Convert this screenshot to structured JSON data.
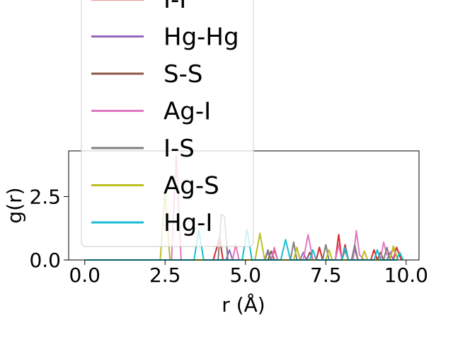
{
  "chart_data": {
    "type": "line",
    "title": "",
    "xlabel": "r (Å)",
    "ylabel": "g(r)",
    "xlim": [
      -0.5,
      10.4
    ],
    "ylim": [
      0,
      4.3
    ],
    "x_ticks": [
      {
        "value": 0.0,
        "label": "0.0"
      },
      {
        "value": 2.5,
        "label": "2.5"
      },
      {
        "value": 5.0,
        "label": "5.0"
      },
      {
        "value": 7.5,
        "label": "7.5"
      },
      {
        "value": 10.0,
        "label": "10.0"
      }
    ],
    "y_ticks": [
      {
        "value": 0.0,
        "label": "0.0"
      },
      {
        "value": 2.5,
        "label": "2.5"
      }
    ],
    "grid": false,
    "legend_position": "upper-left",
    "series": [
      {
        "name": "I-I",
        "color": "#d62728",
        "points": [
          [
            0,
            0
          ],
          [
            4.0,
            0
          ],
          [
            4.2,
            0.9
          ],
          [
            4.3,
            0
          ],
          [
            5.8,
            0
          ],
          [
            5.9,
            0.4
          ],
          [
            6.0,
            0
          ],
          [
            7.2,
            0
          ],
          [
            7.3,
            0.5
          ],
          [
            7.4,
            0
          ],
          [
            7.8,
            0
          ],
          [
            7.9,
            1.0
          ],
          [
            8.0,
            0
          ],
          [
            8.1,
            0.6
          ],
          [
            8.2,
            0
          ],
          [
            8.9,
            0
          ],
          [
            9.0,
            0.4
          ],
          [
            9.1,
            0
          ],
          [
            9.6,
            0
          ],
          [
            9.7,
            0.5
          ],
          [
            9.85,
            0
          ]
        ]
      },
      {
        "name": "Hg-Hg",
        "color": "#9467bd",
        "points": [
          [
            0,
            0
          ],
          [
            4.4,
            0
          ],
          [
            4.5,
            0.4
          ],
          [
            4.6,
            0
          ],
          [
            5.6,
            0
          ],
          [
            5.7,
            0.3
          ],
          [
            5.8,
            0
          ],
          [
            6.7,
            0
          ],
          [
            6.8,
            0.3
          ],
          [
            6.9,
            0
          ],
          [
            8.3,
            0
          ],
          [
            8.4,
            0.4
          ],
          [
            8.5,
            0
          ],
          [
            9.4,
            0
          ],
          [
            9.5,
            0.3
          ],
          [
            9.6,
            0
          ]
        ]
      },
      {
        "name": "S-S",
        "color": "#8c564b",
        "points": [
          [
            0,
            0
          ],
          [
            5.7,
            0
          ],
          [
            5.8,
            0.35
          ],
          [
            5.9,
            0
          ],
          [
            6.9,
            0
          ],
          [
            7.0,
            0.3
          ],
          [
            7.1,
            0
          ],
          [
            8.0,
            0
          ],
          [
            8.1,
            0.4
          ],
          [
            8.2,
            0
          ],
          [
            9.1,
            0
          ],
          [
            9.2,
            0.3
          ],
          [
            9.3,
            0
          ]
        ]
      },
      {
        "name": "Ag-I",
        "color": "#e377c2",
        "points": [
          [
            0,
            0
          ],
          [
            2.7,
            0
          ],
          [
            2.85,
            4.1
          ],
          [
            3.0,
            0
          ],
          [
            4.6,
            0
          ],
          [
            4.7,
            0.6
          ],
          [
            4.8,
            0
          ],
          [
            5.8,
            0
          ],
          [
            5.9,
            0.5
          ],
          [
            6.0,
            0
          ],
          [
            6.8,
            0
          ],
          [
            6.95,
            1.0
          ],
          [
            7.1,
            0
          ],
          [
            7.8,
            0
          ],
          [
            7.9,
            0.6
          ],
          [
            8.0,
            0
          ],
          [
            8.35,
            0
          ],
          [
            8.45,
            1.15
          ],
          [
            8.55,
            0.2
          ],
          [
            8.7,
            0
          ],
          [
            9.2,
            0
          ],
          [
            9.3,
            0.7
          ],
          [
            9.4,
            0.2
          ],
          [
            9.6,
            0.4
          ],
          [
            9.75,
            0
          ]
        ]
      },
      {
        "name": "I-S",
        "color": "#7f7f7f",
        "points": [
          [
            0,
            0
          ],
          [
            4.15,
            0
          ],
          [
            4.25,
            1.8
          ],
          [
            4.35,
            1.7
          ],
          [
            4.45,
            0
          ],
          [
            5.6,
            0
          ],
          [
            5.7,
            0.4
          ],
          [
            5.8,
            0
          ],
          [
            6.4,
            0
          ],
          [
            6.5,
            0.7
          ],
          [
            6.6,
            0
          ],
          [
            7.4,
            0
          ],
          [
            7.5,
            0.6
          ],
          [
            7.6,
            0
          ],
          [
            8.3,
            0
          ],
          [
            8.4,
            0.6
          ],
          [
            8.5,
            0
          ],
          [
            9.3,
            0
          ],
          [
            9.4,
            0.5
          ],
          [
            9.5,
            0
          ]
        ]
      },
      {
        "name": "Ag-S",
        "color": "#bcbd22",
        "points": [
          [
            0,
            0
          ],
          [
            2.35,
            0
          ],
          [
            2.5,
            2.7
          ],
          [
            2.65,
            0
          ],
          [
            5.3,
            0
          ],
          [
            5.45,
            1.05
          ],
          [
            5.6,
            0
          ],
          [
            6.5,
            0
          ],
          [
            6.6,
            0.5
          ],
          [
            6.7,
            0
          ],
          [
            7.5,
            0
          ],
          [
            7.6,
            0.4
          ],
          [
            7.7,
            0
          ],
          [
            8.6,
            0
          ],
          [
            8.7,
            0.35
          ],
          [
            8.8,
            0
          ],
          [
            9.5,
            0
          ],
          [
            9.6,
            0.55
          ],
          [
            9.75,
            0
          ]
        ]
      },
      {
        "name": "Hg-I",
        "color": "#17becf",
        "points": [
          [
            0,
            0
          ],
          [
            3.4,
            0
          ],
          [
            3.55,
            1.2
          ],
          [
            3.7,
            0
          ],
          [
            4.9,
            0
          ],
          [
            5.05,
            1.2
          ],
          [
            5.2,
            0
          ],
          [
            6.1,
            0
          ],
          [
            6.25,
            0.8
          ],
          [
            6.4,
            0
          ],
          [
            7.0,
            0
          ],
          [
            7.1,
            0.4
          ],
          [
            7.2,
            0
          ],
          [
            8.0,
            0
          ],
          [
            8.1,
            0.5
          ],
          [
            8.2,
            0
          ],
          [
            9.0,
            0
          ],
          [
            9.1,
            0.4
          ],
          [
            9.2,
            0
          ],
          [
            9.7,
            0
          ],
          [
            9.8,
            0.3
          ],
          [
            9.9,
            0
          ]
        ]
      }
    ]
  }
}
